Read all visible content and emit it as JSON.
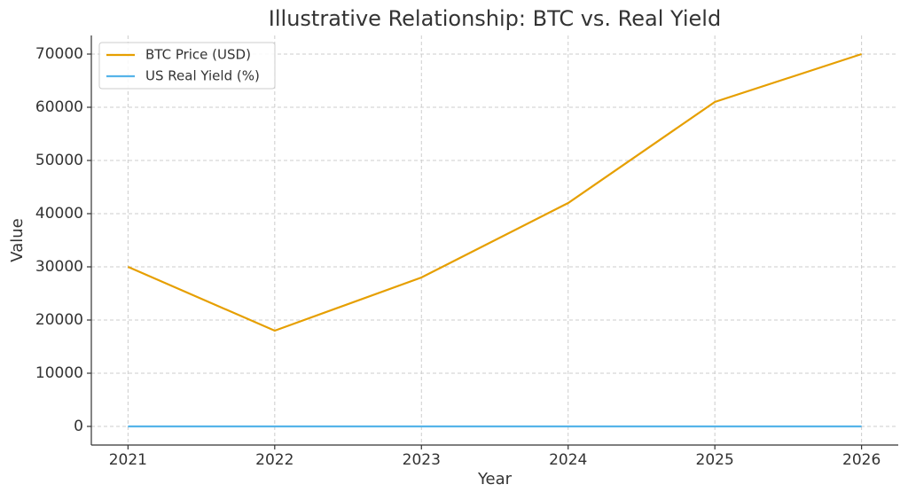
{
  "chart_data": {
    "type": "line",
    "title": "Illustrative Relationship: BTC vs. Real Yield",
    "x_label": "Year",
    "y_label": "Value",
    "x": [
      2021,
      2022,
      2023,
      2024,
      2025,
      2026
    ],
    "series": [
      {
        "name": "BTC Price (USD)",
        "color": "#e69f00",
        "values": [
          30000,
          18000,
          28000,
          42000,
          61000,
          70000
        ]
      },
      {
        "name": "US Real Yield (%)",
        "color": "#56b4e9",
        "values": [
          0,
          0,
          0,
          0,
          0,
          0
        ]
      }
    ],
    "xlim": [
      2020.75,
      2026.25
    ],
    "xticks": [
      2021,
      2022,
      2023,
      2024,
      2025,
      2026
    ],
    "ylim": [
      -3500,
      73500
    ],
    "yticks": [
      0,
      10000,
      20000,
      30000,
      40000,
      50000,
      60000,
      70000
    ],
    "grid": true,
    "legend": "upper-left"
  }
}
